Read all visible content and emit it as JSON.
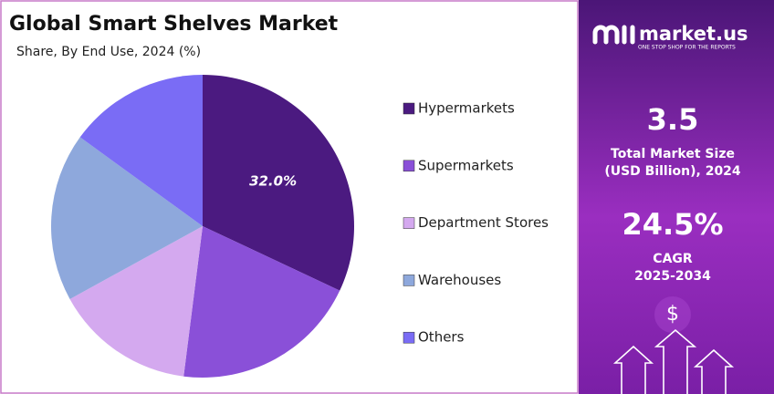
{
  "chart_data": {
    "type": "pie",
    "title": "Global Smart Shelves Market",
    "subtitle": "Share, By End Use, 2024 (%)",
    "categories": [
      "Hypermarkets",
      "Supermarkets",
      "Department Stores",
      "Warehouses",
      "Others"
    ],
    "values": [
      32.0,
      20,
      15,
      18,
      15
    ],
    "value_labels": [
      "32.0%",
      null,
      null,
      null,
      null
    ],
    "colors": [
      "#4b1a80",
      "#8a50d8",
      "#d4a9ef",
      "#8ea8dc",
      "#7a6cf5"
    ],
    "legend": "right"
  },
  "side_panel": {
    "brand": "market.us",
    "tagline": "ONE STOP SHOP FOR THE REPORTS",
    "market_size": "3.5",
    "market_size_label_1": "Total Market Size",
    "market_size_label_2": "(USD Billion), 2024",
    "cagr": "24.5%",
    "cagr_label": "CAGR",
    "cagr_period": "2025-2034",
    "currency_symbol": "$"
  }
}
